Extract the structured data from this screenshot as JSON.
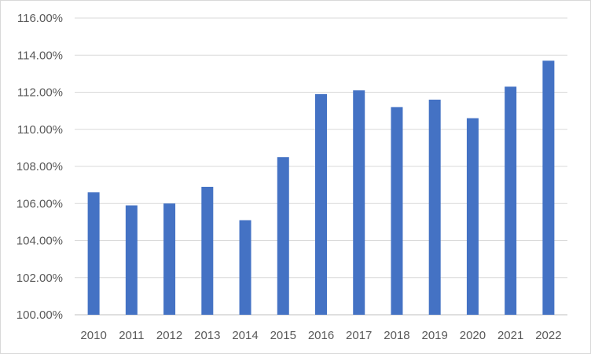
{
  "chart_data": {
    "type": "bar",
    "title": "",
    "xlabel": "",
    "ylabel": "",
    "categories": [
      "2010",
      "2011",
      "2012",
      "2013",
      "2014",
      "2015",
      "2016",
      "2017",
      "2018",
      "2019",
      "2020",
      "2021",
      "2022"
    ],
    "values": [
      106.6,
      105.9,
      106.0,
      106.9,
      105.1,
      108.5,
      111.9,
      112.1,
      111.2,
      111.6,
      110.6,
      112.3,
      113.7
    ],
    "value_format": "percent_2dp",
    "ylim": [
      100,
      116
    ],
    "ytick_step": 2,
    "yticks": [
      "100.00%",
      "102.00%",
      "104.00%",
      "106.00%",
      "108.00%",
      "110.00%",
      "112.00%",
      "114.00%",
      "116.00%"
    ],
    "grid": true,
    "legend": "none",
    "bar_color": "#4472c4",
    "grid_color": "#d9d9d9",
    "axis_color": "#bfbfbf",
    "text_color": "#595959"
  }
}
